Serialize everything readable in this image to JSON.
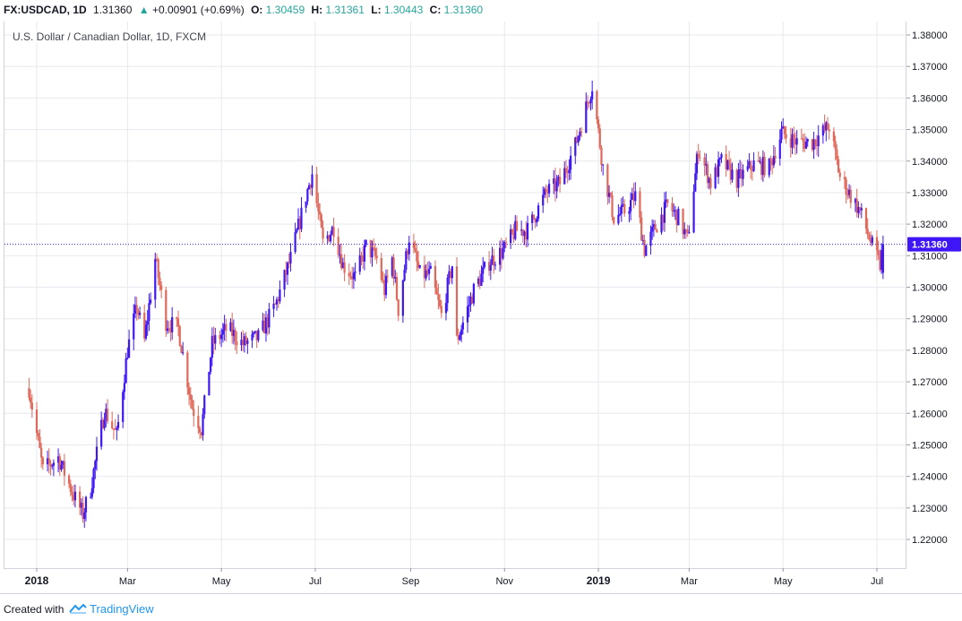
{
  "header": {
    "symbol": "FX:USDCAD, 1D",
    "last": "1.31360",
    "arrow": "▲",
    "change": "+0.00901 (+0.69%)",
    "o_label": "O:",
    "o_value": "1.30459",
    "h_label": "H:",
    "h_value": "1.31361",
    "l_label": "L:",
    "l_value": "1.30443",
    "c_label": "C:",
    "c_value": "1.31360"
  },
  "chart_title": "U.S. Dollar / Canadian Dollar, 1D, FXCM",
  "footer": {
    "created_with": "Created with",
    "brand": "TradingView"
  },
  "colors": {
    "up": "#3f16f5",
    "down": "#e0685a",
    "grid": "#e6e9ee",
    "accent_green": "#26a69a",
    "price_line": "#3f16f5",
    "price_badge": "#3f16f5"
  },
  "chart_data": {
    "type": "candlestick",
    "title": "U.S. Dollar / Canadian Dollar, 1D, FXCM",
    "ylim": [
      1.21,
      1.385
    ],
    "y_ticks": [
      "1.38000",
      "1.37000",
      "1.36000",
      "1.35000",
      "1.34000",
      "1.33000",
      "1.32000",
      "1.31000",
      "1.30000",
      "1.29000",
      "1.28000",
      "1.27000",
      "1.26000",
      "1.25000",
      "1.24000",
      "1.23000",
      "1.22000"
    ],
    "x_ticks": [
      {
        "label": "2018",
        "date": "2018-01-01"
      },
      {
        "label": "Mar",
        "date": "2018-03-01"
      },
      {
        "label": "May",
        "date": "2018-05-01"
      },
      {
        "label": "Jul",
        "date": "2018-07-01"
      },
      {
        "label": "Sep",
        "date": "2018-09-01"
      },
      {
        "label": "Nov",
        "date": "2018-11-01"
      },
      {
        "label": "2019",
        "date": "2019-01-01"
      },
      {
        "label": "Mar",
        "date": "2019-03-01"
      },
      {
        "label": "May",
        "date": "2019-05-01"
      },
      {
        "label": "Jul",
        "date": "2019-07-01"
      }
    ],
    "last_price": "1.31360",
    "last_price_value": 1.3136,
    "path": [
      [
        "2017-12-27",
        1.268
      ],
      [
        "2018-01-05",
        1.242
      ],
      [
        "2018-01-15",
        1.246
      ],
      [
        "2018-01-25",
        1.234
      ],
      [
        "2018-01-31",
        1.228
      ],
      [
        "2018-02-05",
        1.236
      ],
      [
        "2018-02-14",
        1.261
      ],
      [
        "2018-02-22",
        1.253
      ],
      [
        "2018-03-01",
        1.28
      ],
      [
        "2018-03-07",
        1.294
      ],
      [
        "2018-03-12",
        1.283
      ],
      [
        "2018-03-19",
        1.309
      ],
      [
        "2018-03-26",
        1.289
      ],
      [
        "2018-04-03",
        1.287
      ],
      [
        "2018-04-12",
        1.262
      ],
      [
        "2018-04-18",
        1.255
      ],
      [
        "2018-04-25",
        1.282
      ],
      [
        "2018-05-05",
        1.287
      ],
      [
        "2018-05-15",
        1.282
      ],
      [
        "2018-05-25",
        1.284
      ],
      [
        "2018-06-05",
        1.294
      ],
      [
        "2018-06-15",
        1.309
      ],
      [
        "2018-06-25",
        1.329
      ],
      [
        "2018-06-29",
        1.336
      ],
      [
        "2018-07-06",
        1.314
      ],
      [
        "2018-07-13",
        1.319
      ],
      [
        "2018-07-19",
        1.307
      ],
      [
        "2018-07-27",
        1.303
      ],
      [
        "2018-08-03",
        1.313
      ],
      [
        "2018-08-10",
        1.309
      ],
      [
        "2018-08-15",
        1.299
      ],
      [
        "2018-08-20",
        1.309
      ],
      [
        "2018-08-24",
        1.293
      ],
      [
        "2018-08-31",
        1.316
      ],
      [
        "2018-09-07",
        1.304
      ],
      [
        "2018-09-14",
        1.304
      ],
      [
        "2018-09-21",
        1.291
      ],
      [
        "2018-09-28",
        1.307
      ],
      [
        "2018-10-01",
        1.283
      ],
      [
        "2018-10-12",
        1.299
      ],
      [
        "2018-10-22",
        1.308
      ],
      [
        "2018-11-01",
        1.312
      ],
      [
        "2018-11-08",
        1.318
      ],
      [
        "2018-11-16",
        1.318
      ],
      [
        "2018-11-28",
        1.33
      ],
      [
        "2018-12-07",
        1.333
      ],
      [
        "2018-12-17",
        1.345
      ],
      [
        "2018-12-28",
        1.364
      ],
      [
        "2019-01-04",
        1.338
      ],
      [
        "2019-01-11",
        1.322
      ],
      [
        "2019-01-18",
        1.324
      ],
      [
        "2019-01-25",
        1.329
      ],
      [
        "2019-01-31",
        1.312
      ],
      [
        "2019-02-07",
        1.319
      ],
      [
        "2019-02-15",
        1.326
      ],
      [
        "2019-02-22",
        1.322
      ],
      [
        "2019-02-28",
        1.315
      ],
      [
        "2019-03-07",
        1.344
      ],
      [
        "2019-03-15",
        1.333
      ],
      [
        "2019-03-22",
        1.34
      ],
      [
        "2019-04-01",
        1.334
      ],
      [
        "2019-04-12",
        1.339
      ],
      [
        "2019-04-22",
        1.338
      ],
      [
        "2019-04-30",
        1.349
      ],
      [
        "2019-05-10",
        1.346
      ],
      [
        "2019-05-20",
        1.346
      ],
      [
        "2019-05-31",
        1.351
      ],
      [
        "2019-06-07",
        1.335
      ],
      [
        "2019-06-14",
        1.329
      ],
      [
        "2019-06-20",
        1.324
      ],
      [
        "2019-06-28",
        1.313
      ],
      [
        "2019-07-03",
        1.307
      ],
      [
        "2019-07-05",
        1.3136
      ]
    ]
  }
}
